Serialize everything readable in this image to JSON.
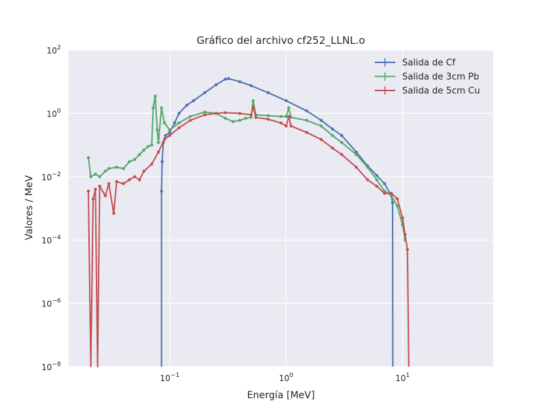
{
  "chart_data": {
    "type": "line",
    "title": "Gráfico del archivo cf252_LLNL.o",
    "xlabel": "Energía [MeV]",
    "ylabel": "Valores / MeV",
    "xscale": "log",
    "yscale": "log",
    "xlim": [
      0.0135,
      60
    ],
    "ylim": [
      1e-08,
      100
    ],
    "grid": true,
    "legend_position": "top-right",
    "background_color": "#eaeaf2",
    "grid_color": "#ffffff",
    "xticks": [
      {
        "value": 0.1,
        "base": "10",
        "exp": "−1"
      },
      {
        "value": 1,
        "base": "10",
        "exp": "0"
      },
      {
        "value": 10,
        "base": "10",
        "exp": "1"
      }
    ],
    "yticks": [
      {
        "value": 1e-08,
        "base": "10",
        "exp": "−8"
      },
      {
        "value": 1e-06,
        "base": "10",
        "exp": "−6"
      },
      {
        "value": 0.0001,
        "base": "10",
        "exp": "−4"
      },
      {
        "value": 0.01,
        "base": "10",
        "exp": "−2"
      },
      {
        "value": 1,
        "base": "10",
        "exp": "0"
      },
      {
        "value": 100,
        "base": "10",
        "exp": "2"
      }
    ],
    "series": [
      {
        "name": "Salida de Cf",
        "color": "#4c72b0",
        "points": [
          [
            0.085,
            1e-09
          ],
          [
            0.085,
            0.0035
          ],
          [
            0.086,
            0.03
          ],
          [
            0.088,
            0.12
          ],
          [
            0.092,
            0.2
          ],
          [
            0.1,
            0.25
          ],
          [
            0.11,
            0.5
          ],
          [
            0.12,
            1.0
          ],
          [
            0.14,
            1.8
          ],
          [
            0.16,
            2.5
          ],
          [
            0.2,
            4.5
          ],
          [
            0.25,
            8.0
          ],
          [
            0.3,
            12.0
          ],
          [
            0.32,
            12.5
          ],
          [
            0.4,
            10.0
          ],
          [
            0.5,
            7.5
          ],
          [
            0.7,
            4.5
          ],
          [
            1.0,
            2.5
          ],
          [
            1.5,
            1.2
          ],
          [
            2.0,
            0.6
          ],
          [
            2.5,
            0.32
          ],
          [
            3.0,
            0.2
          ],
          [
            4.0,
            0.06
          ],
          [
            5.0,
            0.022
          ],
          [
            6.0,
            0.011
          ],
          [
            7.0,
            0.006
          ],
          [
            8.0,
            0.0025
          ],
          [
            8.2,
            0.0015
          ],
          [
            8.25,
            1e-09
          ]
        ]
      },
      {
        "name": "Salida de 3cm Pb",
        "color": "#55a868",
        "points": [
          [
            0.02,
            0.04
          ],
          [
            0.021,
            0.01
          ],
          [
            0.023,
            0.012
          ],
          [
            0.025,
            0.01
          ],
          [
            0.028,
            0.015
          ],
          [
            0.03,
            0.018
          ],
          [
            0.035,
            0.02
          ],
          [
            0.04,
            0.018
          ],
          [
            0.045,
            0.03
          ],
          [
            0.05,
            0.035
          ],
          [
            0.055,
            0.05
          ],
          [
            0.06,
            0.07
          ],
          [
            0.065,
            0.09
          ],
          [
            0.07,
            0.1
          ],
          [
            0.072,
            1.5
          ],
          [
            0.075,
            3.5
          ],
          [
            0.078,
            0.3
          ],
          [
            0.08,
            0.12
          ],
          [
            0.085,
            1.5
          ],
          [
            0.09,
            0.5
          ],
          [
            0.1,
            0.3
          ],
          [
            0.12,
            0.5
          ],
          [
            0.15,
            0.8
          ],
          [
            0.2,
            1.1
          ],
          [
            0.25,
            1.0
          ],
          [
            0.3,
            0.7
          ],
          [
            0.35,
            0.55
          ],
          [
            0.4,
            0.6
          ],
          [
            0.45,
            0.7
          ],
          [
            0.5,
            0.75
          ],
          [
            0.52,
            2.5
          ],
          [
            0.55,
            0.9
          ],
          [
            0.7,
            0.85
          ],
          [
            0.9,
            0.8
          ],
          [
            1.0,
            0.8
          ],
          [
            1.05,
            1.5
          ],
          [
            1.1,
            0.75
          ],
          [
            1.5,
            0.6
          ],
          [
            2.0,
            0.4
          ],
          [
            2.5,
            0.2
          ],
          [
            3.0,
            0.12
          ],
          [
            4.0,
            0.05
          ],
          [
            5.0,
            0.02
          ],
          [
            6.0,
            0.008
          ],
          [
            7.0,
            0.0035
          ],
          [
            8.0,
            0.0025
          ],
          [
            9.0,
            0.0012
          ],
          [
            10.0,
            0.0003
          ],
          [
            10.5,
            0.0001
          ]
        ]
      },
      {
        "name": "Salida de 5cm Cu",
        "color": "#c44e52",
        "points": [
          [
            0.02,
            0.0035
          ],
          [
            0.021,
            1e-09
          ],
          [
            0.022,
            0.002
          ],
          [
            0.023,
            0.004
          ],
          [
            0.024,
            1e-09
          ],
          [
            0.025,
            0.005
          ],
          [
            0.028,
            0.0025
          ],
          [
            0.03,
            0.006
          ],
          [
            0.033,
            0.0007
          ],
          [
            0.035,
            0.007
          ],
          [
            0.04,
            0.006
          ],
          [
            0.045,
            0.008
          ],
          [
            0.05,
            0.01
          ],
          [
            0.055,
            0.008
          ],
          [
            0.06,
            0.015
          ],
          [
            0.07,
            0.025
          ],
          [
            0.08,
            0.06
          ],
          [
            0.09,
            0.15
          ],
          [
            0.1,
            0.2
          ],
          [
            0.12,
            0.35
          ],
          [
            0.15,
            0.6
          ],
          [
            0.2,
            0.9
          ],
          [
            0.25,
            1.0
          ],
          [
            0.3,
            1.05
          ],
          [
            0.4,
            1.0
          ],
          [
            0.5,
            0.9
          ],
          [
            0.52,
            1.6
          ],
          [
            0.55,
            0.75
          ],
          [
            0.7,
            0.65
          ],
          [
            0.9,
            0.5
          ],
          [
            1.0,
            0.4
          ],
          [
            1.05,
            0.8
          ],
          [
            1.1,
            0.4
          ],
          [
            1.5,
            0.25
          ],
          [
            2.0,
            0.15
          ],
          [
            2.5,
            0.08
          ],
          [
            3.0,
            0.05
          ],
          [
            4.0,
            0.02
          ],
          [
            5.0,
            0.008
          ],
          [
            6.0,
            0.005
          ],
          [
            7.0,
            0.003
          ],
          [
            8.0,
            0.003
          ],
          [
            9.0,
            0.002
          ],
          [
            10.0,
            0.0005
          ],
          [
            10.5,
            0.00015
          ],
          [
            11.0,
            5e-05
          ],
          [
            11.3,
            1e-09
          ]
        ]
      }
    ]
  }
}
